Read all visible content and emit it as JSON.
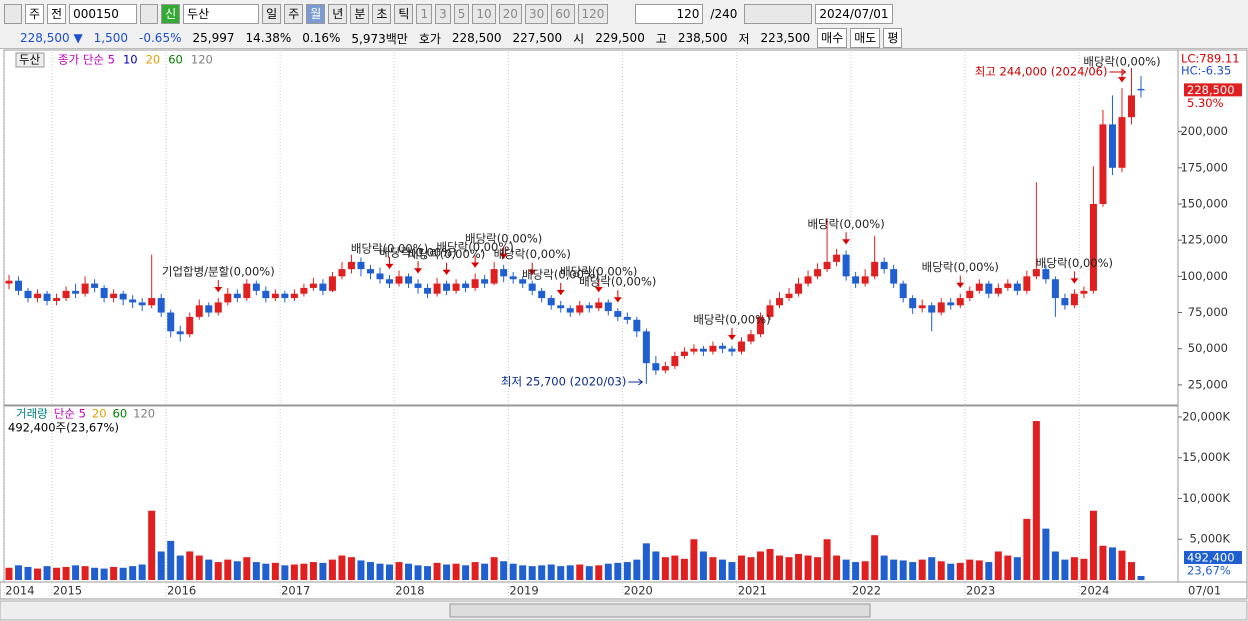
{
  "toolbar": {
    "market": "주",
    "prev": "전",
    "code": "000150",
    "badge": "신",
    "name": "두산",
    "periods": [
      "일",
      "주",
      "월",
      "년",
      "분",
      "초",
      "틱"
    ],
    "intervals": [
      "1",
      "3",
      "5",
      "10",
      "20",
      "30",
      "60",
      "120"
    ],
    "count": "120",
    "total": "/240",
    "date": "2024/07/01"
  },
  "info_bar": [
    "228,500 ▼",
    "1,500",
    "-0.65%",
    "25,997",
    "14.38%",
    "0.16%",
    "5,973백만",
    "호가",
    "228,500",
    "227,500",
    "시",
    "229,500",
    "고",
    "238,500",
    "저",
    "223,500"
  ],
  "buttons": [
    "매수",
    "매도",
    "평"
  ],
  "chart_data": [
    {
      "type": "candlestick",
      "name": "두산",
      "legend": [
        {
          "name": "종가 단순 5",
          "color": "#c000c0"
        },
        {
          "name": "10",
          "color": "#0000c0"
        },
        {
          "name": "20",
          "color": "#e0a000"
        },
        {
          "name": "60",
          "color": "#008000"
        },
        {
          "name": "120",
          "color": "#808080"
        }
      ],
      "up_color": "#e02020",
      "down_color": "#1f5fd0",
      "ylim": [
        12500,
        255000
      ],
      "yticks": [
        {
          "value": 25000,
          "label": "25,000"
        },
        {
          "value": 50000,
          "label": "50,000"
        },
        {
          "value": 75000,
          "label": "75,000"
        },
        {
          "value": 100000,
          "label": "100,000"
        },
        {
          "value": 125000,
          "label": "125,000"
        },
        {
          "value": 150000,
          "label": "150,000"
        },
        {
          "value": 175000,
          "label": "175,000"
        },
        {
          "value": 200000,
          "label": "200,000"
        }
      ],
      "open": [
        95000,
        97000,
        90000,
        85000,
        88000,
        83000,
        85000,
        90000,
        88000,
        95000,
        92000,
        85000,
        88000,
        84000,
        82000,
        80000,
        85000,
        75000,
        62000,
        60000,
        72000,
        80000,
        75000,
        82000,
        88000,
        85000,
        95000,
        90000,
        85000,
        88000,
        85000,
        88000,
        92000,
        95000,
        90000,
        100000,
        105000,
        110000,
        105000,
        102000,
        98000,
        95000,
        100000,
        95000,
        92000,
        88000,
        95000,
        90000,
        95000,
        92000,
        98000,
        95000,
        105000,
        100000,
        98000,
        95000,
        90000,
        85000,
        80000,
        78000,
        75000,
        80000,
        78000,
        82000,
        76000,
        72000,
        70000,
        62000,
        40000,
        35000,
        38000,
        45000,
        48000,
        50000,
        48000,
        52000,
        50000,
        48000,
        55000,
        60000,
        72000,
        80000,
        85000,
        88000,
        95000,
        100000,
        105000,
        110000,
        115000,
        100000,
        95000,
        100000,
        110000,
        105000,
        95000,
        85000,
        78000,
        80000,
        75000,
        82000,
        80000,
        85000,
        90000,
        95000,
        88000,
        92000,
        95000,
        90000,
        100000,
        105000,
        98000,
        85000,
        80000,
        88000,
        90000,
        150000,
        205000,
        175000,
        210000,
        229500
      ],
      "high": [
        101000,
        100000,
        92000,
        91000,
        90000,
        88000,
        93000,
        95000,
        100000,
        98000,
        94000,
        91000,
        90000,
        87000,
        85000,
        115000,
        88000,
        77000,
        66000,
        75000,
        84000,
        82000,
        85000,
        92000,
        91000,
        98000,
        97000,
        93000,
        91000,
        90000,
        91000,
        95000,
        99000,
        98000,
        103000,
        110000,
        115000,
        113000,
        108000,
        106000,
        101000,
        104000,
        102000,
        98000,
        95000,
        99000,
        97000,
        98000,
        97000,
        102000,
        101000,
        110000,
        108000,
        103000,
        100000,
        97000,
        92000,
        87000,
        83000,
        80000,
        83000,
        82000,
        85000,
        84000,
        78000,
        75000,
        72000,
        64000,
        45000,
        41000,
        48000,
        51000,
        53000,
        52000,
        55000,
        54000,
        52000,
        58000,
        63000,
        75000,
        84000,
        89000,
        92000,
        99000,
        104000,
        109000,
        140000,
        119000,
        118000,
        103000,
        105000,
        128000,
        113000,
        108000,
        97000,
        87000,
        84000,
        82000,
        85000,
        85000,
        88000,
        93000,
        98000,
        97000,
        95000,
        98000,
        97000,
        104000,
        165000,
        108000,
        100000,
        88000,
        91000,
        93000,
        176000,
        215000,
        225000,
        230000,
        244000,
        238500
      ],
      "low": [
        91000,
        87000,
        82000,
        82000,
        80000,
        80000,
        83000,
        85000,
        86000,
        89000,
        82000,
        82000,
        80000,
        78000,
        76000,
        78000,
        72000,
        58000,
        55000,
        58000,
        70000,
        72000,
        73000,
        80000,
        82000,
        83000,
        87000,
        82000,
        83000,
        82000,
        83000,
        86000,
        90000,
        87000,
        89000,
        98000,
        102000,
        100000,
        98000,
        95000,
        92000,
        93000,
        92000,
        88000,
        85000,
        86000,
        87000,
        88000,
        89000,
        90000,
        92000,
        94000,
        96000,
        95000,
        92000,
        87000,
        82000,
        77000,
        75000,
        72000,
        73000,
        75000,
        76000,
        73000,
        69000,
        67000,
        58000,
        25700,
        32000,
        33000,
        36000,
        43000,
        46000,
        45000,
        46000,
        47000,
        45000,
        46000,
        53000,
        58000,
        70000,
        78000,
        83000,
        86000,
        93000,
        98000,
        103000,
        107000,
        97000,
        92000,
        93000,
        98000,
        102000,
        92000,
        82000,
        74000,
        75000,
        62000,
        73000,
        77000,
        78000,
        83000,
        88000,
        85000,
        86000,
        90000,
        87000,
        88000,
        98000,
        95000,
        72000,
        77000,
        78000,
        85000,
        88000,
        148000,
        170000,
        172000,
        205000,
        223500
      ],
      "close": [
        97000,
        90000,
        85000,
        88000,
        83000,
        85000,
        90000,
        88000,
        95000,
        92000,
        85000,
        88000,
        84000,
        82000,
        80000,
        85000,
        75000,
        62000,
        60000,
        72000,
        80000,
        75000,
        82000,
        88000,
        85000,
        95000,
        90000,
        85000,
        88000,
        85000,
        88000,
        92000,
        95000,
        90000,
        100000,
        105000,
        110000,
        105000,
        102000,
        98000,
        95000,
        100000,
        95000,
        92000,
        88000,
        95000,
        90000,
        95000,
        92000,
        98000,
        95000,
        105000,
        100000,
        98000,
        95000,
        90000,
        85000,
        80000,
        78000,
        75000,
        80000,
        78000,
        82000,
        76000,
        72000,
        70000,
        62000,
        40000,
        35000,
        38000,
        45000,
        48000,
        50000,
        48000,
        52000,
        50000,
        48000,
        55000,
        60000,
        72000,
        80000,
        85000,
        88000,
        95000,
        100000,
        105000,
        110000,
        115000,
        100000,
        95000,
        100000,
        110000,
        105000,
        95000,
        85000,
        78000,
        80000,
        75000,
        82000,
        80000,
        85000,
        90000,
        95000,
        88000,
        92000,
        95000,
        90000,
        100000,
        105000,
        98000,
        85000,
        80000,
        88000,
        90000,
        150000,
        205000,
        175000,
        210000,
        225000,
        228500
      ],
      "annotations": [
        {
          "text": "기업합병/분할(0,00%)",
          "index": 22
        },
        {
          "text": "배당락(0,00%)",
          "index": 40
        },
        {
          "text": "배당락(0,00%)",
          "index": 43
        },
        {
          "text": "배당락(0,00%)",
          "index": 46
        },
        {
          "text": "배당락(0,00%)",
          "index": 49
        },
        {
          "text": "배당락(0,00%)",
          "index": 52
        },
        {
          "text": "배당락(0,00%)",
          "index": 55
        },
        {
          "text": "배당락(0,00%)",
          "index": 58
        },
        {
          "text": "배당락(0,00%)",
          "index": 62
        },
        {
          "text": "배당락(0,00%)",
          "index": 64
        },
        {
          "text": "배당락(0,00%)",
          "index": 76
        },
        {
          "text": "배당락(0,00%)",
          "index": 88
        },
        {
          "text": "배당락(0,00%)",
          "index": 100
        },
        {
          "text": "배당락(0,00%)",
          "index": 112
        },
        {
          "text": "배당락(0,00%)",
          "index": 117
        }
      ],
      "high_label": "최고 244,000 (2024/06)",
      "high_index": 118,
      "low_label": "최저 25,700 (2020/03)",
      "low_index": 67,
      "right_labels": {
        "lc": "LC:789.11",
        "hc": "HC:-6.35",
        "last": "228,500",
        "change": "5.30%"
      }
    },
    {
      "type": "bar",
      "legend": [
        {
          "name": "거래량",
          "color": "#008080"
        },
        {
          "name": "단순 5",
          "color": "#c000c0"
        },
        {
          "name": "20",
          "color": "#e0a000"
        },
        {
          "name": "60",
          "color": "#008000"
        },
        {
          "name": "120",
          "color": "#808080"
        }
      ],
      "summary": "492,400주(23,67%)",
      "categories": [
        "2014",
        null,
        null,
        null,
        null,
        "2015",
        null,
        null,
        null,
        null,
        null,
        null,
        null,
        null,
        null,
        null,
        null,
        "2016",
        null,
        null,
        null,
        null,
        null,
        null,
        null,
        null,
        null,
        null,
        null,
        "2017",
        null,
        null,
        null,
        null,
        null,
        null,
        null,
        null,
        null,
        null,
        null,
        "2018",
        null,
        null,
        null,
        null,
        null,
        null,
        null,
        null,
        null,
        null,
        null,
        "2019",
        null,
        null,
        null,
        null,
        null,
        null,
        null,
        null,
        null,
        null,
        null,
        "2020",
        null,
        null,
        null,
        null,
        null,
        null,
        null,
        null,
        null,
        null,
        null,
        "2021",
        null,
        null,
        null,
        null,
        null,
        null,
        null,
        null,
        null,
        null,
        null,
        "2022",
        null,
        null,
        null,
        null,
        null,
        null,
        null,
        null,
        null,
        null,
        null,
        "2023",
        null,
        null,
        null,
        null,
        null,
        null,
        null,
        null,
        null,
        null,
        null,
        "2024",
        null,
        null,
        null,
        null,
        null,
        null
      ],
      "x_end_label": "07/01",
      "ylim": [
        0,
        21100
      ],
      "yticks": [
        {
          "value": 5000,
          "label": "5,000K"
        },
        {
          "value": 10000,
          "label": "10,000K"
        },
        {
          "value": 15000,
          "label": "15,000K"
        },
        {
          "value": 20000,
          "label": "20,000K"
        }
      ],
      "values": [
        1500,
        1800,
        1600,
        1400,
        1700,
        1500,
        1600,
        1800,
        1700,
        1500,
        1400,
        1600,
        1500,
        1700,
        1900,
        8500,
        3500,
        4800,
        3000,
        3500,
        3000,
        2500,
        2200,
        2500,
        2300,
        2800,
        2200,
        2000,
        2100,
        1800,
        1900,
        2000,
        2200,
        2100,
        2500,
        3000,
        2800,
        2400,
        2200,
        2000,
        1900,
        2200,
        2000,
        1800,
        1700,
        2100,
        1900,
        2000,
        1800,
        2200,
        2000,
        2800,
        2300,
        2000,
        1800,
        1700,
        1800,
        1900,
        1700,
        1800,
        1900,
        1700,
        1800,
        2000,
        2100,
        2200,
        2500,
        4500,
        3500,
        2800,
        3000,
        2600,
        5000,
        3500,
        2800,
        2500,
        2200,
        3000,
        2800,
        3500,
        3800,
        3000,
        2800,
        3200,
        3000,
        2800,
        5000,
        3000,
        2500,
        2200,
        2300,
        5500,
        3000,
        2500,
        2400,
        2200,
        2500,
        2800,
        2300,
        2000,
        2100,
        2500,
        2400,
        2200,
        3500,
        3000,
        2800,
        7500,
        19500,
        6300,
        3500,
        2500,
        2800,
        2600,
        8500,
        4200,
        4000,
        3600,
        2200,
        492.4
      ],
      "last_label": "492,400",
      "ratio_label": "23,67%"
    }
  ]
}
